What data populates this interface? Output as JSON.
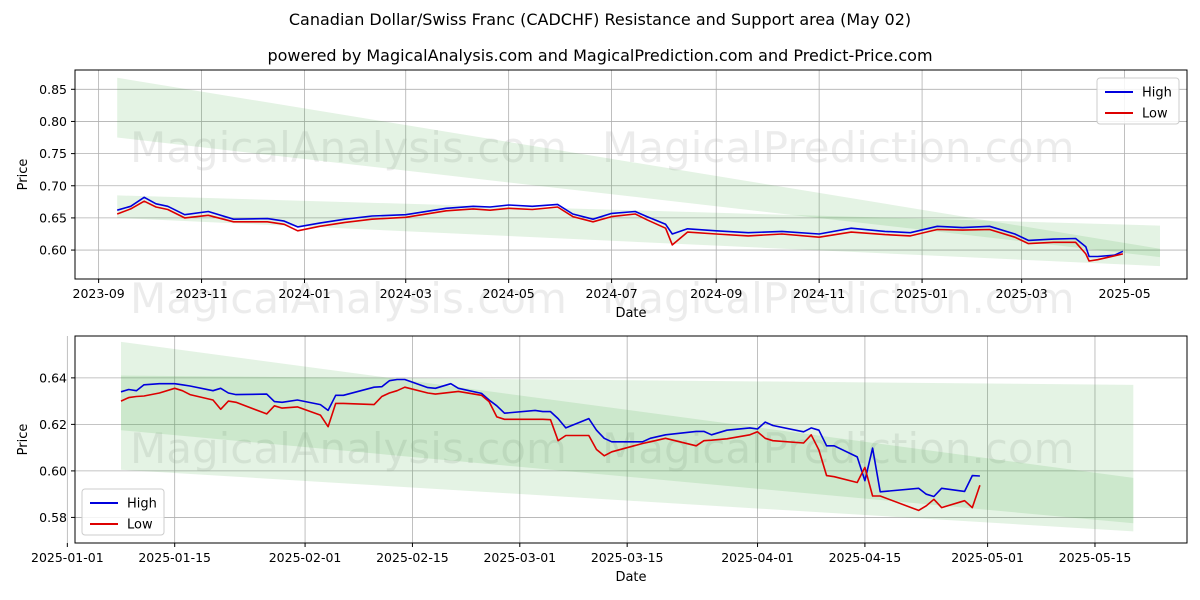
{
  "title": "Canadian Dollar/Swiss Franc (CADCHF) Resistance and Support area (May 02)",
  "subtitle": "powered by MagicalAnalysis.com and MagicalPrediction.com and Predict-Price.com",
  "watermarks": [
    "MagicalAnalysis.com",
    "MagicalPrediction.com"
  ],
  "colors": {
    "high": "#0000dd",
    "low": "#dd0000",
    "band": "#2ca02c"
  },
  "chart_data": [
    {
      "type": "line",
      "xlabel": "Date",
      "ylabel": "Price",
      "ylim": [
        0.555,
        0.88
      ],
      "xlim": [
        "2023-08-18",
        "2025-06-07"
      ],
      "x_ticks": [
        "2023-09",
        "2023-11",
        "2024-01",
        "2024-03",
        "2024-05",
        "2024-07",
        "2024-09",
        "2024-11",
        "2025-01",
        "2025-03",
        "2025-05"
      ],
      "y_ticks": [
        "0.60",
        "0.65",
        "0.70",
        "0.75",
        "0.80",
        "0.85"
      ],
      "legend": "top-right",
      "grid": true,
      "bands": [
        {
          "x": [
            "2023-09-12",
            "2025-05-22"
          ],
          "upper": [
            0.868,
            0.602
          ],
          "lower": [
            0.775,
            0.589
          ]
        },
        {
          "x": [
            "2023-09-12",
            "2025-05-22"
          ],
          "upper": [
            0.685,
            0.638
          ],
          "lower": [
            0.65,
            0.575
          ]
        }
      ],
      "series": [
        {
          "name": "High",
          "x": [
            "2023-09-12",
            "2023-09-20",
            "2023-09-28",
            "2023-10-05",
            "2023-10-12",
            "2023-10-22",
            "2023-11-05",
            "2023-11-20",
            "2023-12-10",
            "2023-12-20",
            "2023-12-28",
            "2024-01-10",
            "2024-01-25",
            "2024-02-10",
            "2024-03-01",
            "2024-03-25",
            "2024-04-10",
            "2024-04-20",
            "2024-05-01",
            "2024-05-15",
            "2024-05-30",
            "2024-06-08",
            "2024-06-20",
            "2024-07-01",
            "2024-07-15",
            "2024-07-22",
            "2024-08-02",
            "2024-08-06",
            "2024-08-15",
            "2024-09-01",
            "2024-09-20",
            "2024-10-10",
            "2024-11-01",
            "2024-11-20",
            "2024-12-10",
            "2024-12-25",
            "2025-01-10",
            "2025-01-25",
            "2025-02-10",
            "2025-02-25",
            "2025-03-05",
            "2025-03-20",
            "2025-04-02",
            "2025-04-08",
            "2025-04-10",
            "2025-04-15",
            "2025-04-25",
            "2025-04-30"
          ],
          "values": [
            0.662,
            0.668,
            0.682,
            0.672,
            0.668,
            0.655,
            0.66,
            0.648,
            0.649,
            0.645,
            0.636,
            0.642,
            0.648,
            0.653,
            0.655,
            0.665,
            0.668,
            0.667,
            0.67,
            0.668,
            0.671,
            0.656,
            0.648,
            0.657,
            0.66,
            0.652,
            0.64,
            0.625,
            0.633,
            0.63,
            0.627,
            0.629,
            0.625,
            0.634,
            0.629,
            0.627,
            0.637,
            0.635,
            0.637,
            0.625,
            0.615,
            0.617,
            0.618,
            0.605,
            0.59,
            0.59,
            0.592,
            0.598
          ]
        },
        {
          "name": "Low",
          "x": [
            "2023-09-12",
            "2023-09-20",
            "2023-09-28",
            "2023-10-05",
            "2023-10-12",
            "2023-10-22",
            "2023-11-05",
            "2023-11-20",
            "2023-12-10",
            "2023-12-20",
            "2023-12-28",
            "2024-01-10",
            "2024-01-25",
            "2024-02-10",
            "2024-03-01",
            "2024-03-25",
            "2024-04-10",
            "2024-04-20",
            "2024-05-01",
            "2024-05-15",
            "2024-05-30",
            "2024-06-08",
            "2024-06-20",
            "2024-07-01",
            "2024-07-15",
            "2024-07-22",
            "2024-08-02",
            "2024-08-06",
            "2024-08-15",
            "2024-09-01",
            "2024-09-20",
            "2024-10-10",
            "2024-11-01",
            "2024-11-20",
            "2024-12-10",
            "2024-12-25",
            "2025-01-10",
            "2025-01-25",
            "2025-02-10",
            "2025-02-25",
            "2025-03-05",
            "2025-03-20",
            "2025-04-02",
            "2025-04-08",
            "2025-04-10",
            "2025-04-15",
            "2025-04-25",
            "2025-04-30"
          ],
          "values": [
            0.656,
            0.664,
            0.676,
            0.667,
            0.663,
            0.65,
            0.654,
            0.644,
            0.644,
            0.64,
            0.63,
            0.637,
            0.643,
            0.648,
            0.651,
            0.661,
            0.664,
            0.662,
            0.665,
            0.663,
            0.667,
            0.652,
            0.644,
            0.652,
            0.656,
            0.647,
            0.634,
            0.608,
            0.628,
            0.625,
            0.622,
            0.625,
            0.62,
            0.628,
            0.624,
            0.622,
            0.632,
            0.631,
            0.632,
            0.62,
            0.61,
            0.612,
            0.612,
            0.594,
            0.583,
            0.585,
            0.591,
            0.594
          ]
        }
      ]
    },
    {
      "type": "line",
      "xlabel": "Date",
      "ylabel": "Price",
      "ylim": [
        0.569,
        0.658
      ],
      "xlim": [
        "2025-01-02",
        "2025-05-27"
      ],
      "x_ticks": [
        "2025-01-01",
        "2025-01-15",
        "2025-02-01",
        "2025-02-15",
        "2025-03-01",
        "2025-03-15",
        "2025-04-01",
        "2025-04-15",
        "2025-05-01",
        "2025-05-15"
      ],
      "y_ticks": [
        "0.58",
        "0.60",
        "0.62",
        "0.64"
      ],
      "legend": "bottom-left",
      "grid": true,
      "bands": [
        {
          "x": [
            "2025-01-08",
            "2025-05-20"
          ],
          "upper": [
            0.6555,
            0.597
          ],
          "lower": [
            0.6175,
            0.5775
          ]
        },
        {
          "x": [
            "2025-01-08",
            "2025-05-20"
          ],
          "upper": [
            0.641,
            0.637
          ],
          "lower": [
            0.6005,
            0.574
          ]
        }
      ],
      "series": [
        {
          "name": "High",
          "x": [
            "2025-01-08",
            "2025-01-09",
            "2025-01-10",
            "2025-01-11",
            "2025-01-13",
            "2025-01-15",
            "2025-01-16",
            "2025-01-17",
            "2025-01-20",
            "2025-01-21",
            "2025-01-22",
            "2025-01-23",
            "2025-01-27",
            "2025-01-28",
            "2025-01-29",
            "2025-01-31",
            "2025-02-03",
            "2025-02-04",
            "2025-02-05",
            "2025-02-06",
            "2025-02-10",
            "2025-02-11",
            "2025-02-12",
            "2025-02-13",
            "2025-02-14",
            "2025-02-17",
            "2025-02-18",
            "2025-02-20",
            "2025-02-21",
            "2025-02-24",
            "2025-02-25",
            "2025-02-26",
            "2025-02-27",
            "2025-03-03",
            "2025-03-04",
            "2025-03-05",
            "2025-03-06",
            "2025-03-07",
            "2025-03-10",
            "2025-03-11",
            "2025-03-12",
            "2025-03-13",
            "2025-03-17",
            "2025-03-18",
            "2025-03-20",
            "2025-03-24",
            "2025-03-25",
            "2025-03-26",
            "2025-03-28",
            "2025-03-31",
            "2025-04-01",
            "2025-04-02",
            "2025-04-03",
            "2025-04-07",
            "2025-04-08",
            "2025-04-09",
            "2025-04-10",
            "2025-04-11",
            "2025-04-14",
            "2025-04-15",
            "2025-04-16",
            "2025-04-17",
            "2025-04-22",
            "2025-04-23",
            "2025-04-24",
            "2025-04-25",
            "2025-04-28",
            "2025-04-29",
            "2025-04-30"
          ],
          "values": [
            0.634,
            0.635,
            0.6345,
            0.637,
            0.6375,
            0.6375,
            0.637,
            0.6365,
            0.6345,
            0.6355,
            0.6335,
            0.6328,
            0.633,
            0.6298,
            0.6295,
            0.6305,
            0.6285,
            0.626,
            0.6325,
            0.6325,
            0.636,
            0.6362,
            0.6388,
            0.6393,
            0.6393,
            0.6358,
            0.6355,
            0.6375,
            0.6355,
            0.6333,
            0.6305,
            0.628,
            0.6248,
            0.626,
            0.6255,
            0.6255,
            0.6225,
            0.6185,
            0.6225,
            0.6175,
            0.614,
            0.6125,
            0.6125,
            0.614,
            0.6155,
            0.617,
            0.617,
            0.6155,
            0.6175,
            0.6185,
            0.618,
            0.621,
            0.6195,
            0.6168,
            0.6185,
            0.6175,
            0.6108,
            0.6108,
            0.606,
            0.5958,
            0.6098,
            0.591,
            0.5925,
            0.59,
            0.589,
            0.5925,
            0.5912,
            0.598,
            0.5978
          ]
        },
        {
          "name": "Low",
          "x": [
            "2025-01-08",
            "2025-01-09",
            "2025-01-10",
            "2025-01-11",
            "2025-01-13",
            "2025-01-15",
            "2025-01-16",
            "2025-01-17",
            "2025-01-20",
            "2025-01-21",
            "2025-01-22",
            "2025-01-23",
            "2025-01-27",
            "2025-01-28",
            "2025-01-29",
            "2025-01-31",
            "2025-02-03",
            "2025-02-04",
            "2025-02-05",
            "2025-02-06",
            "2025-02-10",
            "2025-02-11",
            "2025-02-12",
            "2025-02-13",
            "2025-02-14",
            "2025-02-17",
            "2025-02-18",
            "2025-02-20",
            "2025-02-21",
            "2025-02-24",
            "2025-02-25",
            "2025-02-26",
            "2025-02-27",
            "2025-03-03",
            "2025-03-04",
            "2025-03-05",
            "2025-03-06",
            "2025-03-07",
            "2025-03-10",
            "2025-03-11",
            "2025-03-12",
            "2025-03-13",
            "2025-03-17",
            "2025-03-18",
            "2025-03-20",
            "2025-03-24",
            "2025-03-25",
            "2025-03-26",
            "2025-03-28",
            "2025-03-31",
            "2025-04-01",
            "2025-04-02",
            "2025-04-03",
            "2025-04-07",
            "2025-04-08",
            "2025-04-09",
            "2025-04-10",
            "2025-04-11",
            "2025-04-14",
            "2025-04-15",
            "2025-04-16",
            "2025-04-17",
            "2025-04-22",
            "2025-04-23",
            "2025-04-24",
            "2025-04-25",
            "2025-04-28",
            "2025-04-29",
            "2025-04-30"
          ],
          "values": [
            0.63,
            0.6315,
            0.632,
            0.6322,
            0.6335,
            0.6355,
            0.6345,
            0.6328,
            0.6305,
            0.6265,
            0.63,
            0.6295,
            0.6245,
            0.628,
            0.627,
            0.6275,
            0.624,
            0.619,
            0.629,
            0.629,
            0.6285,
            0.632,
            0.6335,
            0.6345,
            0.636,
            0.6335,
            0.633,
            0.6338,
            0.6342,
            0.6325,
            0.6298,
            0.6232,
            0.6222,
            0.6222,
            0.6222,
            0.622,
            0.613,
            0.6152,
            0.6152,
            0.6092,
            0.6065,
            0.6082,
            0.6118,
            0.6125,
            0.614,
            0.6108,
            0.613,
            0.6132,
            0.6138,
            0.6155,
            0.6168,
            0.614,
            0.613,
            0.612,
            0.6155,
            0.609,
            0.598,
            0.5975,
            0.595,
            0.6015,
            0.5892,
            0.5892,
            0.583,
            0.585,
            0.5878,
            0.5842,
            0.5872,
            0.5842,
            0.5938
          ]
        }
      ]
    }
  ]
}
